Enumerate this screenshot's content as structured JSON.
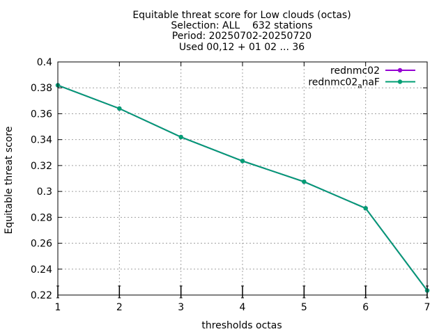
{
  "chart_data": {
    "type": "line",
    "title_lines": [
      "Equitable threat score  for Low clouds (octas)",
      "Selection: ALL    632 stations",
      "Period: 20250702-20250720",
      "Used 00,12 + 01 02 ... 36"
    ],
    "xlabel": "thresholds octas",
    "ylabel": "Equitable threat score",
    "xlim": [
      1,
      7
    ],
    "ylim": [
      0.22,
      0.4
    ],
    "x_ticks": [
      1,
      2,
      3,
      4,
      5,
      6,
      7
    ],
    "y_ticks": [
      0.22,
      0.24,
      0.26,
      0.28,
      0.3,
      0.32,
      0.34,
      0.36,
      0.38,
      0.4
    ],
    "grid": true,
    "legend_position": "top-right",
    "x": [
      1,
      2,
      3,
      4,
      5,
      6,
      7
    ],
    "series": [
      {
        "name": "rednmc02",
        "name_base": "rednmc02",
        "name_sub": "",
        "name_rest": "",
        "color": "#9400d3",
        "values": [
          0.382,
          0.364,
          0.342,
          0.3235,
          0.3075,
          0.287,
          0.2235
        ]
      },
      {
        "name": "rednmc02_anaF",
        "name_base": "rednmc02",
        "name_sub": "a",
        "name_rest": "naF",
        "color": "#009e73",
        "values": [
          0.382,
          0.364,
          0.342,
          0.3235,
          0.3075,
          0.287,
          0.2235
        ]
      }
    ],
    "error_bars": true
  }
}
